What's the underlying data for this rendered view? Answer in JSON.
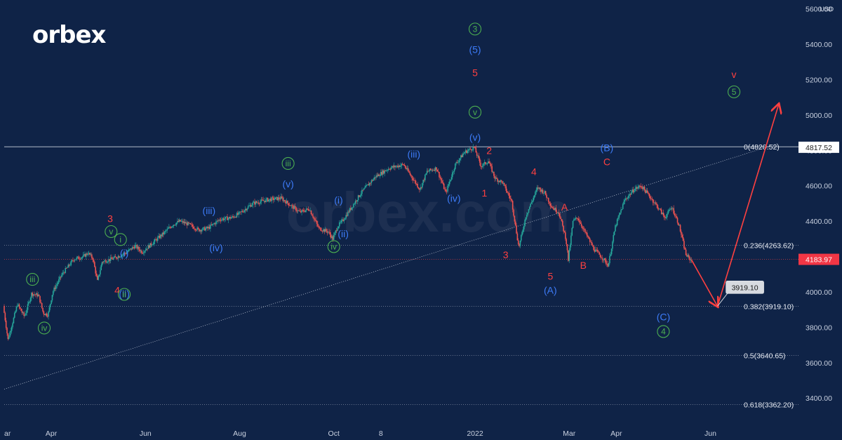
{
  "brand": {
    "logo_text": "orbex",
    "watermark_text": "orbex.com"
  },
  "colors": {
    "background": "#0f2347",
    "candle_up": "#26a69a",
    "candle_down": "#ef5350",
    "wave_green": "#4caf50",
    "wave_blue": "#3d7bf7",
    "wave_red": "#ff4040",
    "axis_text": "#c9d1e0",
    "line": "#cfd6e4"
  },
  "chart_data": {
    "type": "candlestick",
    "currency": "USD",
    "ylim": [
      3250,
      5650
    ],
    "y_ticks": [
      3400,
      3600,
      3800,
      4000,
      4200,
      4400,
      4600,
      4800,
      5000,
      5200,
      5400,
      5600
    ],
    "y_tick_labels": [
      "3400.00",
      "3600.00",
      "3800.00",
      "4000.00",
      "4200.00",
      "4400.00",
      "4600.00",
      "4800.00",
      "5000.00",
      "5200.00",
      "5400.00",
      "5600.00"
    ],
    "x_tick_labels": [
      {
        "label": "ar",
        "t": 0
      },
      {
        "label": "Apr",
        "t": 1
      },
      {
        "label": "Jun",
        "t": 3
      },
      {
        "label": "Aug",
        "t": 5
      },
      {
        "label": "Oct",
        "t": 7
      },
      {
        "label": "8",
        "t": 8
      },
      {
        "label": "2022",
        "t": 10
      },
      {
        "label": "Mar",
        "t": 12
      },
      {
        "label": "Apr",
        "t": 13
      },
      {
        "label": "Jun",
        "t": 15
      }
    ],
    "x_range": [
      0,
      16.9
    ],
    "price_path": [
      [
        0,
        3920
      ],
      [
        0.1,
        3730
      ],
      [
        0.3,
        3930
      ],
      [
        0.45,
        3860
      ],
      [
        0.6,
        3990
      ],
      [
        0.75,
        3980
      ],
      [
        0.85,
        3880
      ],
      [
        0.95,
        3870
      ],
      [
        1.05,
        4000
      ],
      [
        1.25,
        4100
      ],
      [
        1.5,
        4185
      ],
      [
        1.7,
        4200
      ],
      [
        1.8,
        4220
      ],
      [
        1.9,
        4190
      ],
      [
        2.0,
        4060
      ],
      [
        2.1,
        4170
      ],
      [
        2.35,
        4190
      ],
      [
        2.6,
        4220
      ],
      [
        2.8,
        4260
      ],
      [
        2.95,
        4225
      ],
      [
        3.1,
        4260
      ],
      [
        3.4,
        4330
      ],
      [
        3.6,
        4380
      ],
      [
        3.75,
        4400
      ],
      [
        3.95,
        4380
      ],
      [
        4.15,
        4350
      ],
      [
        4.35,
        4360
      ],
      [
        4.6,
        4410
      ],
      [
        4.85,
        4420
      ],
      [
        5.0,
        4440
      ],
      [
        5.3,
        4500
      ],
      [
        5.6,
        4520
      ],
      [
        5.9,
        4530
      ],
      [
        6.1,
        4490
      ],
      [
        6.3,
        4450
      ],
      [
        6.5,
        4470
      ],
      [
        6.7,
        4360
      ],
      [
        6.9,
        4340
      ],
      [
        7.0,
        4300
      ],
      [
        7.1,
        4370
      ],
      [
        7.2,
        4400
      ],
      [
        7.35,
        4460
      ],
      [
        7.6,
        4560
      ],
      [
        7.9,
        4650
      ],
      [
        8.2,
        4700
      ],
      [
        8.5,
        4720
      ],
      [
        8.7,
        4640
      ],
      [
        8.85,
        4580
      ],
      [
        9.0,
        4680
      ],
      [
        9.2,
        4700
      ],
      [
        9.4,
        4560
      ],
      [
        9.6,
        4720
      ],
      [
        9.8,
        4790
      ],
      [
        10.0,
        4818
      ],
      [
        10.15,
        4710
      ],
      [
        10.3,
        4740
      ],
      [
        10.45,
        4640
      ],
      [
        10.6,
        4620
      ],
      [
        10.8,
        4510
      ],
      [
        10.95,
        4250
      ],
      [
        11.1,
        4430
      ],
      [
        11.35,
        4590
      ],
      [
        11.5,
        4560
      ],
      [
        11.65,
        4480
      ],
      [
        11.8,
        4450
      ],
      [
        11.95,
        4300
      ],
      [
        12.0,
        4180
      ],
      [
        12.1,
        4400
      ],
      [
        12.2,
        4420
      ],
      [
        12.35,
        4340
      ],
      [
        12.55,
        4240
      ],
      [
        12.7,
        4200
      ],
      [
        12.85,
        4150
      ],
      [
        13.0,
        4370
      ],
      [
        13.2,
        4520
      ],
      [
        13.4,
        4580
      ],
      [
        13.55,
        4600
      ],
      [
        13.7,
        4550
      ],
      [
        13.9,
        4480
      ],
      [
        14.05,
        4420
      ],
      [
        14.2,
        4480
      ],
      [
        14.35,
        4380
      ],
      [
        14.5,
        4210
      ],
      [
        14.6,
        4180
      ]
    ],
    "fib_levels": [
      {
        "level": "0",
        "value": 4820.52,
        "label": "0(4820.52)"
      },
      {
        "level": "0.236",
        "value": 4263.62,
        "label": "0.236(4263.62)"
      },
      {
        "level": "0.382",
        "value": 3919.1,
        "label": "0.382(3919.10)"
      },
      {
        "level": "0.5",
        "value": 3640.65,
        "label": "0.5(3640.65)"
      },
      {
        "level": "0.618",
        "value": 3362.2,
        "label": "0.618(3362.20)"
      }
    ],
    "price_badges": [
      {
        "value": 4817.52,
        "label": "4817.52",
        "style": "white"
      },
      {
        "value": 4183.97,
        "label": "4183.97",
        "style": "red"
      }
    ],
    "projection": {
      "points": [
        [
          14.6,
          4180
        ],
        [
          15.15,
          3919.1
        ],
        [
          16.45,
          5060
        ]
      ],
      "target_label": "3919.10",
      "target_value": 3919.1
    },
    "trendline": {
      "points": [
        [
          0,
          3450
        ],
        [
          16.45,
          4840
        ]
      ]
    },
    "wave_labels": [
      {
        "t": 10.0,
        "y": 5470,
        "text": "3",
        "color": "green",
        "circled": true
      },
      {
        "t": 10.0,
        "y": 5350,
        "text": "(5)",
        "color": "blue"
      },
      {
        "t": 10.0,
        "y": 5220,
        "text": "5",
        "color": "red"
      },
      {
        "t": 10.0,
        "y": 5000,
        "text": "v",
        "color": "green",
        "circled": true
      },
      {
        "t": 10.0,
        "y": 4855,
        "text": "(v)",
        "color": "blue"
      },
      {
        "t": 10.3,
        "y": 4780,
        "text": "2",
        "color": "red"
      },
      {
        "t": 10.2,
        "y": 4540,
        "text": "1",
        "color": "red"
      },
      {
        "t": 8.7,
        "y": 4760,
        "text": "(iii)",
        "color": "blue"
      },
      {
        "t": 9.55,
        "y": 4510,
        "text": "(iv)",
        "color": "blue"
      },
      {
        "t": 6.03,
        "y": 4710,
        "text": "iii",
        "color": "green",
        "circled": true
      },
      {
        "t": 6.03,
        "y": 4590,
        "text": "(v)",
        "color": "blue"
      },
      {
        "t": 4.35,
        "y": 4440,
        "text": "(iii)",
        "color": "blue"
      },
      {
        "t": 4.5,
        "y": 4230,
        "text": "(iv)",
        "color": "blue"
      },
      {
        "t": 7.1,
        "y": 4500,
        "text": "(i)",
        "color": "blue"
      },
      {
        "t": 7.2,
        "y": 4310,
        "text": "(ii)",
        "color": "blue"
      },
      {
        "t": 7.0,
        "y": 4240,
        "text": "iv",
        "color": "green",
        "circled": true
      },
      {
        "t": 2.25,
        "y": 4395,
        "text": "3",
        "color": "red"
      },
      {
        "t": 2.27,
        "y": 4325,
        "text": "v",
        "color": "green",
        "circled": true
      },
      {
        "t": 2.47,
        "y": 4280,
        "text": "i",
        "color": "green",
        "circled": true
      },
      {
        "t": 2.55,
        "y": 4200,
        "text": "(i)",
        "color": "blue"
      },
      {
        "t": 2.4,
        "y": 3990,
        "text": "4",
        "color": "red"
      },
      {
        "t": 2.55,
        "y": 3970,
        "text": "(ii)",
        "color": "blue"
      },
      {
        "t": 2.55,
        "y": 3970,
        "text": "ii",
        "color": "green",
        "circled": true
      },
      {
        "t": 0.6,
        "y": 4055,
        "text": "iii",
        "color": "green",
        "circled": true
      },
      {
        "t": 0.85,
        "y": 3780,
        "text": "iv",
        "color": "green",
        "circled": true
      },
      {
        "t": 10.65,
        "y": 4190,
        "text": "3",
        "color": "red"
      },
      {
        "t": 11.25,
        "y": 4660,
        "text": "4",
        "color": "red"
      },
      {
        "t": 11.6,
        "y": 4070,
        "text": "5",
        "color": "red"
      },
      {
        "t": 11.6,
        "y": 3990,
        "text": "(A)",
        "color": "blue"
      },
      {
        "t": 11.9,
        "y": 4460,
        "text": "A",
        "color": "red"
      },
      {
        "t": 12.3,
        "y": 4130,
        "text": "B",
        "color": "red"
      },
      {
        "t": 12.8,
        "y": 4795,
        "text": "(B)",
        "color": "blue"
      },
      {
        "t": 12.8,
        "y": 4715,
        "text": "C",
        "color": "red"
      },
      {
        "t": 14.0,
        "y": 3840,
        "text": "(C)",
        "color": "blue"
      },
      {
        "t": 14.0,
        "y": 3760,
        "text": "4",
        "color": "green",
        "circled": true
      },
      {
        "t": 15.5,
        "y": 5210,
        "text": "v",
        "color": "red"
      },
      {
        "t": 15.5,
        "y": 5115,
        "text": "5",
        "color": "green",
        "circled": true
      }
    ]
  }
}
